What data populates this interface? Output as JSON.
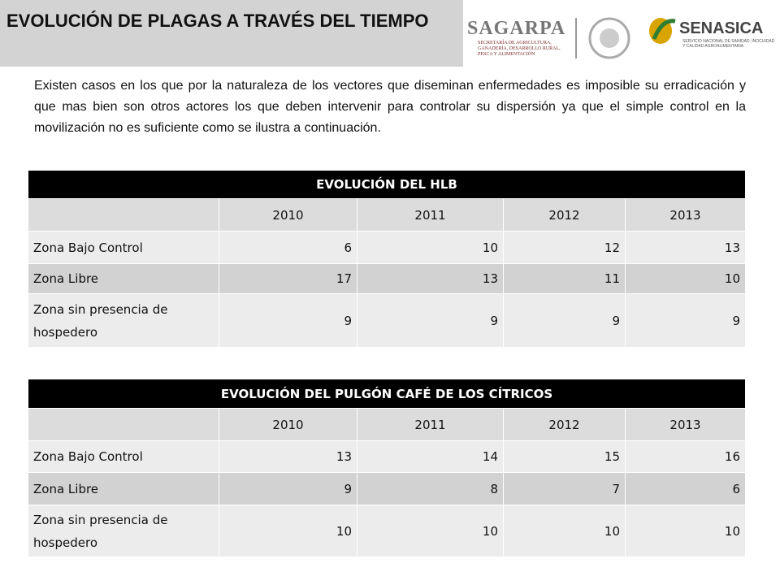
{
  "header": {
    "title": "EVOLUCIÓN DE PLAGAS A TRAVÉS DEL TIEMPO"
  },
  "logos": {
    "sagarpa": "SAGARPA",
    "sagarpa_sub": "SECRETARÍA DE AGRICULTURA, GANADERÍA, DESARROLLO RURAL, PESCA Y ALIMENTACIÓN",
    "senasica": "SENASICA",
    "senasica_sub": "SERVICIO NACIONAL DE SANIDAD, INOCUIDAD Y CALIDAD AGROALIMENTARIA"
  },
  "intro": "Existen casos en los que por la naturaleza de los vectores que diseminan enfermedades es imposible su erradicación y que mas bien son otros actores los que deben intervenir para controlar su dispersión ya que el simple control en la movilización no es suficiente como se ilustra a continuación.",
  "tables": [
    {
      "title": "EVOLUCIÓN DEL HLB",
      "columns": [
        "2010",
        "2011",
        "2012",
        "2013"
      ],
      "rows": [
        {
          "label": "Zona Bajo Control",
          "values": [
            6,
            10,
            12,
            13
          ]
        },
        {
          "label": "Zona Libre",
          "values": [
            17,
            13,
            11,
            10
          ]
        },
        {
          "label": "Zona sin presencia de hospedero",
          "values": [
            9,
            9,
            9,
            9
          ]
        }
      ]
    },
    {
      "title": "EVOLUCIÓN DEL PULGÓN CAFÉ DE LOS CÍTRICOS",
      "columns": [
        "2010",
        "2011",
        "2012",
        "2013"
      ],
      "rows": [
        {
          "label": "Zona Bajo Control",
          "values": [
            13,
            14,
            15,
            16
          ]
        },
        {
          "label": "Zona Libre",
          "values": [
            9,
            8,
            7,
            6
          ]
        },
        {
          "label": "Zona sin presencia de hospedero",
          "values": [
            10,
            10,
            10,
            10
          ]
        }
      ]
    }
  ]
}
